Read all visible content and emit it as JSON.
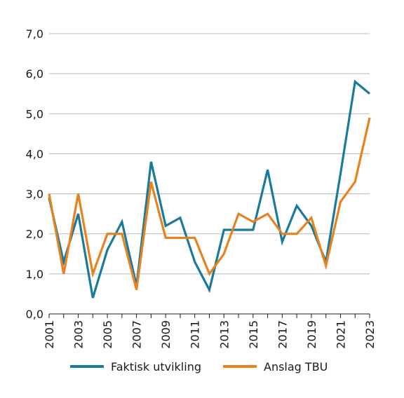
{
  "chart_data": {
    "type": "line",
    "x": [
      2001,
      2002,
      2003,
      2004,
      2005,
      2006,
      2007,
      2008,
      2009,
      2010,
      2011,
      2012,
      2013,
      2014,
      2015,
      2016,
      2017,
      2018,
      2019,
      2020,
      2021,
      2022,
      2023
    ],
    "x_tick_labels": [
      "2001",
      "2003",
      "2005",
      "2007",
      "2009",
      "2011",
      "2013",
      "2015",
      "2017",
      "2019",
      "2021",
      "2023"
    ],
    "y_tick_labels": [
      "0,0",
      "1,0",
      "2,0",
      "3,0",
      "4,0",
      "5,0",
      "6,0",
      "7,0"
    ],
    "ylim": [
      0,
      7
    ],
    "grid": true,
    "legend_position": "bottom",
    "series": [
      {
        "name": "Faktisk utvikling",
        "color": "#1a7a9c",
        "values": [
          2.9,
          1.3,
          2.5,
          0.4,
          1.6,
          2.3,
          0.7,
          3.8,
          2.2,
          2.4,
          1.3,
          0.6,
          2.1,
          2.1,
          2.1,
          3.6,
          1.8,
          2.7,
          2.2,
          1.3,
          3.5,
          5.8,
          5.5
        ]
      },
      {
        "name": "Anslag TBU",
        "color": "#e8821e",
        "values": [
          3.0,
          1.0,
          3.0,
          1.0,
          2.0,
          2.0,
          0.6,
          3.3,
          1.9,
          1.9,
          1.9,
          1.0,
          1.5,
          2.5,
          2.3,
          2.5,
          2.0,
          2.0,
          2.4,
          1.2,
          2.8,
          3.3,
          4.9
        ]
      }
    ]
  }
}
